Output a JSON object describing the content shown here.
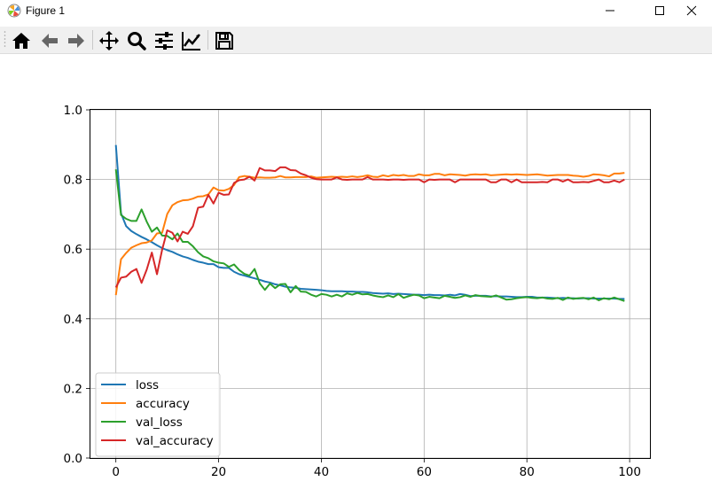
{
  "window": {
    "title": "Figure 1"
  },
  "toolbar": {
    "buttons": [
      {
        "name": "home-icon"
      },
      {
        "name": "back-icon"
      },
      {
        "name": "forward-icon"
      },
      {
        "name": "pan-icon"
      },
      {
        "name": "zoom-icon"
      },
      {
        "name": "configure-subplots-icon"
      },
      {
        "name": "edit-axis-icon"
      },
      {
        "name": "save-icon"
      }
    ]
  },
  "chart_data": {
    "type": "line",
    "title": "",
    "xlabel": "",
    "ylabel": "",
    "xlim": [
      -4.95,
      103.95
    ],
    "ylim": [
      0.0,
      1.0
    ],
    "xticks": [
      "0",
      "20",
      "40",
      "60",
      "80",
      "100"
    ],
    "yticks": [
      "0.0",
      "0.2",
      "0.4",
      "0.6",
      "0.8",
      "1.0"
    ],
    "grid": true,
    "legend": "lower-left",
    "series": [
      {
        "name": "loss",
        "color": "#1f77b4",
        "values": [
          0.899,
          0.703,
          0.666,
          0.652,
          0.643,
          0.635,
          0.628,
          0.62,
          0.611,
          0.603,
          0.597,
          0.592,
          0.585,
          0.579,
          0.575,
          0.569,
          0.564,
          0.561,
          0.557,
          0.557,
          0.548,
          0.546,
          0.546,
          0.535,
          0.528,
          0.524,
          0.52,
          0.516,
          0.512,
          0.507,
          0.504,
          0.499,
          0.496,
          0.492,
          0.49,
          0.489,
          0.486,
          0.485,
          0.484,
          0.483,
          0.482,
          0.48,
          0.479,
          0.479,
          0.479,
          0.478,
          0.478,
          0.477,
          0.477,
          0.476,
          0.474,
          0.473,
          0.472,
          0.473,
          0.471,
          0.472,
          0.471,
          0.47,
          0.469,
          0.469,
          0.468,
          0.469,
          0.468,
          0.468,
          0.467,
          0.469,
          0.467,
          0.471,
          0.469,
          0.465,
          0.466,
          0.466,
          0.466,
          0.464,
          0.465,
          0.464,
          0.464,
          0.463,
          0.462,
          0.462,
          0.463,
          0.463,
          0.461,
          0.461,
          0.461,
          0.46,
          0.459,
          0.46,
          0.459,
          0.459,
          0.458,
          0.459,
          0.459,
          0.458,
          0.458,
          0.458,
          0.458,
          0.458,
          0.457,
          0.457
        ]
      },
      {
        "name": "accuracy",
        "color": "#ff7f0e",
        "values": [
          0.468,
          0.571,
          0.589,
          0.604,
          0.611,
          0.617,
          0.619,
          0.625,
          0.645,
          0.647,
          0.701,
          0.726,
          0.735,
          0.74,
          0.741,
          0.745,
          0.751,
          0.752,
          0.757,
          0.777,
          0.769,
          0.768,
          0.773,
          0.784,
          0.807,
          0.81,
          0.808,
          0.805,
          0.806,
          0.805,
          0.805,
          0.806,
          0.81,
          0.806,
          0.806,
          0.807,
          0.807,
          0.807,
          0.809,
          0.805,
          0.806,
          0.807,
          0.808,
          0.807,
          0.808,
          0.807,
          0.809,
          0.807,
          0.809,
          0.812,
          0.808,
          0.807,
          0.812,
          0.809,
          0.813,
          0.811,
          0.813,
          0.81,
          0.81,
          0.815,
          0.812,
          0.812,
          0.816,
          0.816,
          0.812,
          0.815,
          0.814,
          0.813,
          0.811,
          0.814,
          0.815,
          0.814,
          0.815,
          0.812,
          0.813,
          0.814,
          0.815,
          0.814,
          0.815,
          0.814,
          0.813,
          0.814,
          0.815,
          0.813,
          0.811,
          0.812,
          0.813,
          0.813,
          0.813,
          0.811,
          0.81,
          0.808,
          0.81,
          0.815,
          0.814,
          0.812,
          0.809,
          0.817,
          0.817,
          0.819
        ]
      },
      {
        "name": "val_loss",
        "color": "#2ca02c",
        "values": [
          0.829,
          0.698,
          0.687,
          0.681,
          0.681,
          0.714,
          0.679,
          0.65,
          0.662,
          0.639,
          0.638,
          0.628,
          0.645,
          0.621,
          0.621,
          0.608,
          0.591,
          0.579,
          0.574,
          0.565,
          0.561,
          0.559,
          0.549,
          0.556,
          0.54,
          0.529,
          0.524,
          0.543,
          0.502,
          0.483,
          0.501,
          0.488,
          0.499,
          0.5,
          0.476,
          0.494,
          0.478,
          0.477,
          0.469,
          0.464,
          0.471,
          0.469,
          0.464,
          0.469,
          0.464,
          0.473,
          0.469,
          0.474,
          0.47,
          0.471,
          0.467,
          0.464,
          0.462,
          0.467,
          0.462,
          0.471,
          0.46,
          0.465,
          0.469,
          0.467,
          0.459,
          0.463,
          0.461,
          0.459,
          0.466,
          0.463,
          0.46,
          0.462,
          0.467,
          0.463,
          0.468,
          0.465,
          0.464,
          0.463,
          0.467,
          0.461,
          0.455,
          0.456,
          0.459,
          0.461,
          0.462,
          0.46,
          0.459,
          0.461,
          0.458,
          0.457,
          0.46,
          0.454,
          0.461,
          0.457,
          0.459,
          0.46,
          0.456,
          0.461,
          0.453,
          0.459,
          0.456,
          0.461,
          0.456,
          0.451
        ]
      },
      {
        "name": "val_accuracy",
        "color": "#d62728",
        "values": [
          0.49,
          0.518,
          0.521,
          0.535,
          0.543,
          0.503,
          0.541,
          0.59,
          0.528,
          0.598,
          0.654,
          0.647,
          0.622,
          0.65,
          0.644,
          0.666,
          0.719,
          0.722,
          0.756,
          0.731,
          0.762,
          0.756,
          0.757,
          0.79,
          0.798,
          0.8,
          0.808,
          0.797,
          0.833,
          0.826,
          0.826,
          0.824,
          0.835,
          0.835,
          0.827,
          0.826,
          0.817,
          0.812,
          0.805,
          0.801,
          0.8,
          0.8,
          0.8,
          0.806,
          0.8,
          0.799,
          0.8,
          0.8,
          0.8,
          0.807,
          0.8,
          0.8,
          0.8,
          0.799,
          0.8,
          0.8,
          0.799,
          0.8,
          0.8,
          0.8,
          0.792,
          0.8,
          0.799,
          0.8,
          0.8,
          0.8,
          0.792,
          0.8,
          0.8,
          0.8,
          0.8,
          0.8,
          0.8,
          0.792,
          0.792,
          0.8,
          0.8,
          0.792,
          0.8,
          0.792,
          0.792,
          0.792,
          0.792,
          0.793,
          0.792,
          0.8,
          0.8,
          0.794,
          0.8,
          0.792,
          0.792,
          0.793,
          0.792,
          0.796,
          0.8,
          0.792,
          0.792,
          0.797,
          0.792,
          0.8
        ]
      }
    ]
  }
}
